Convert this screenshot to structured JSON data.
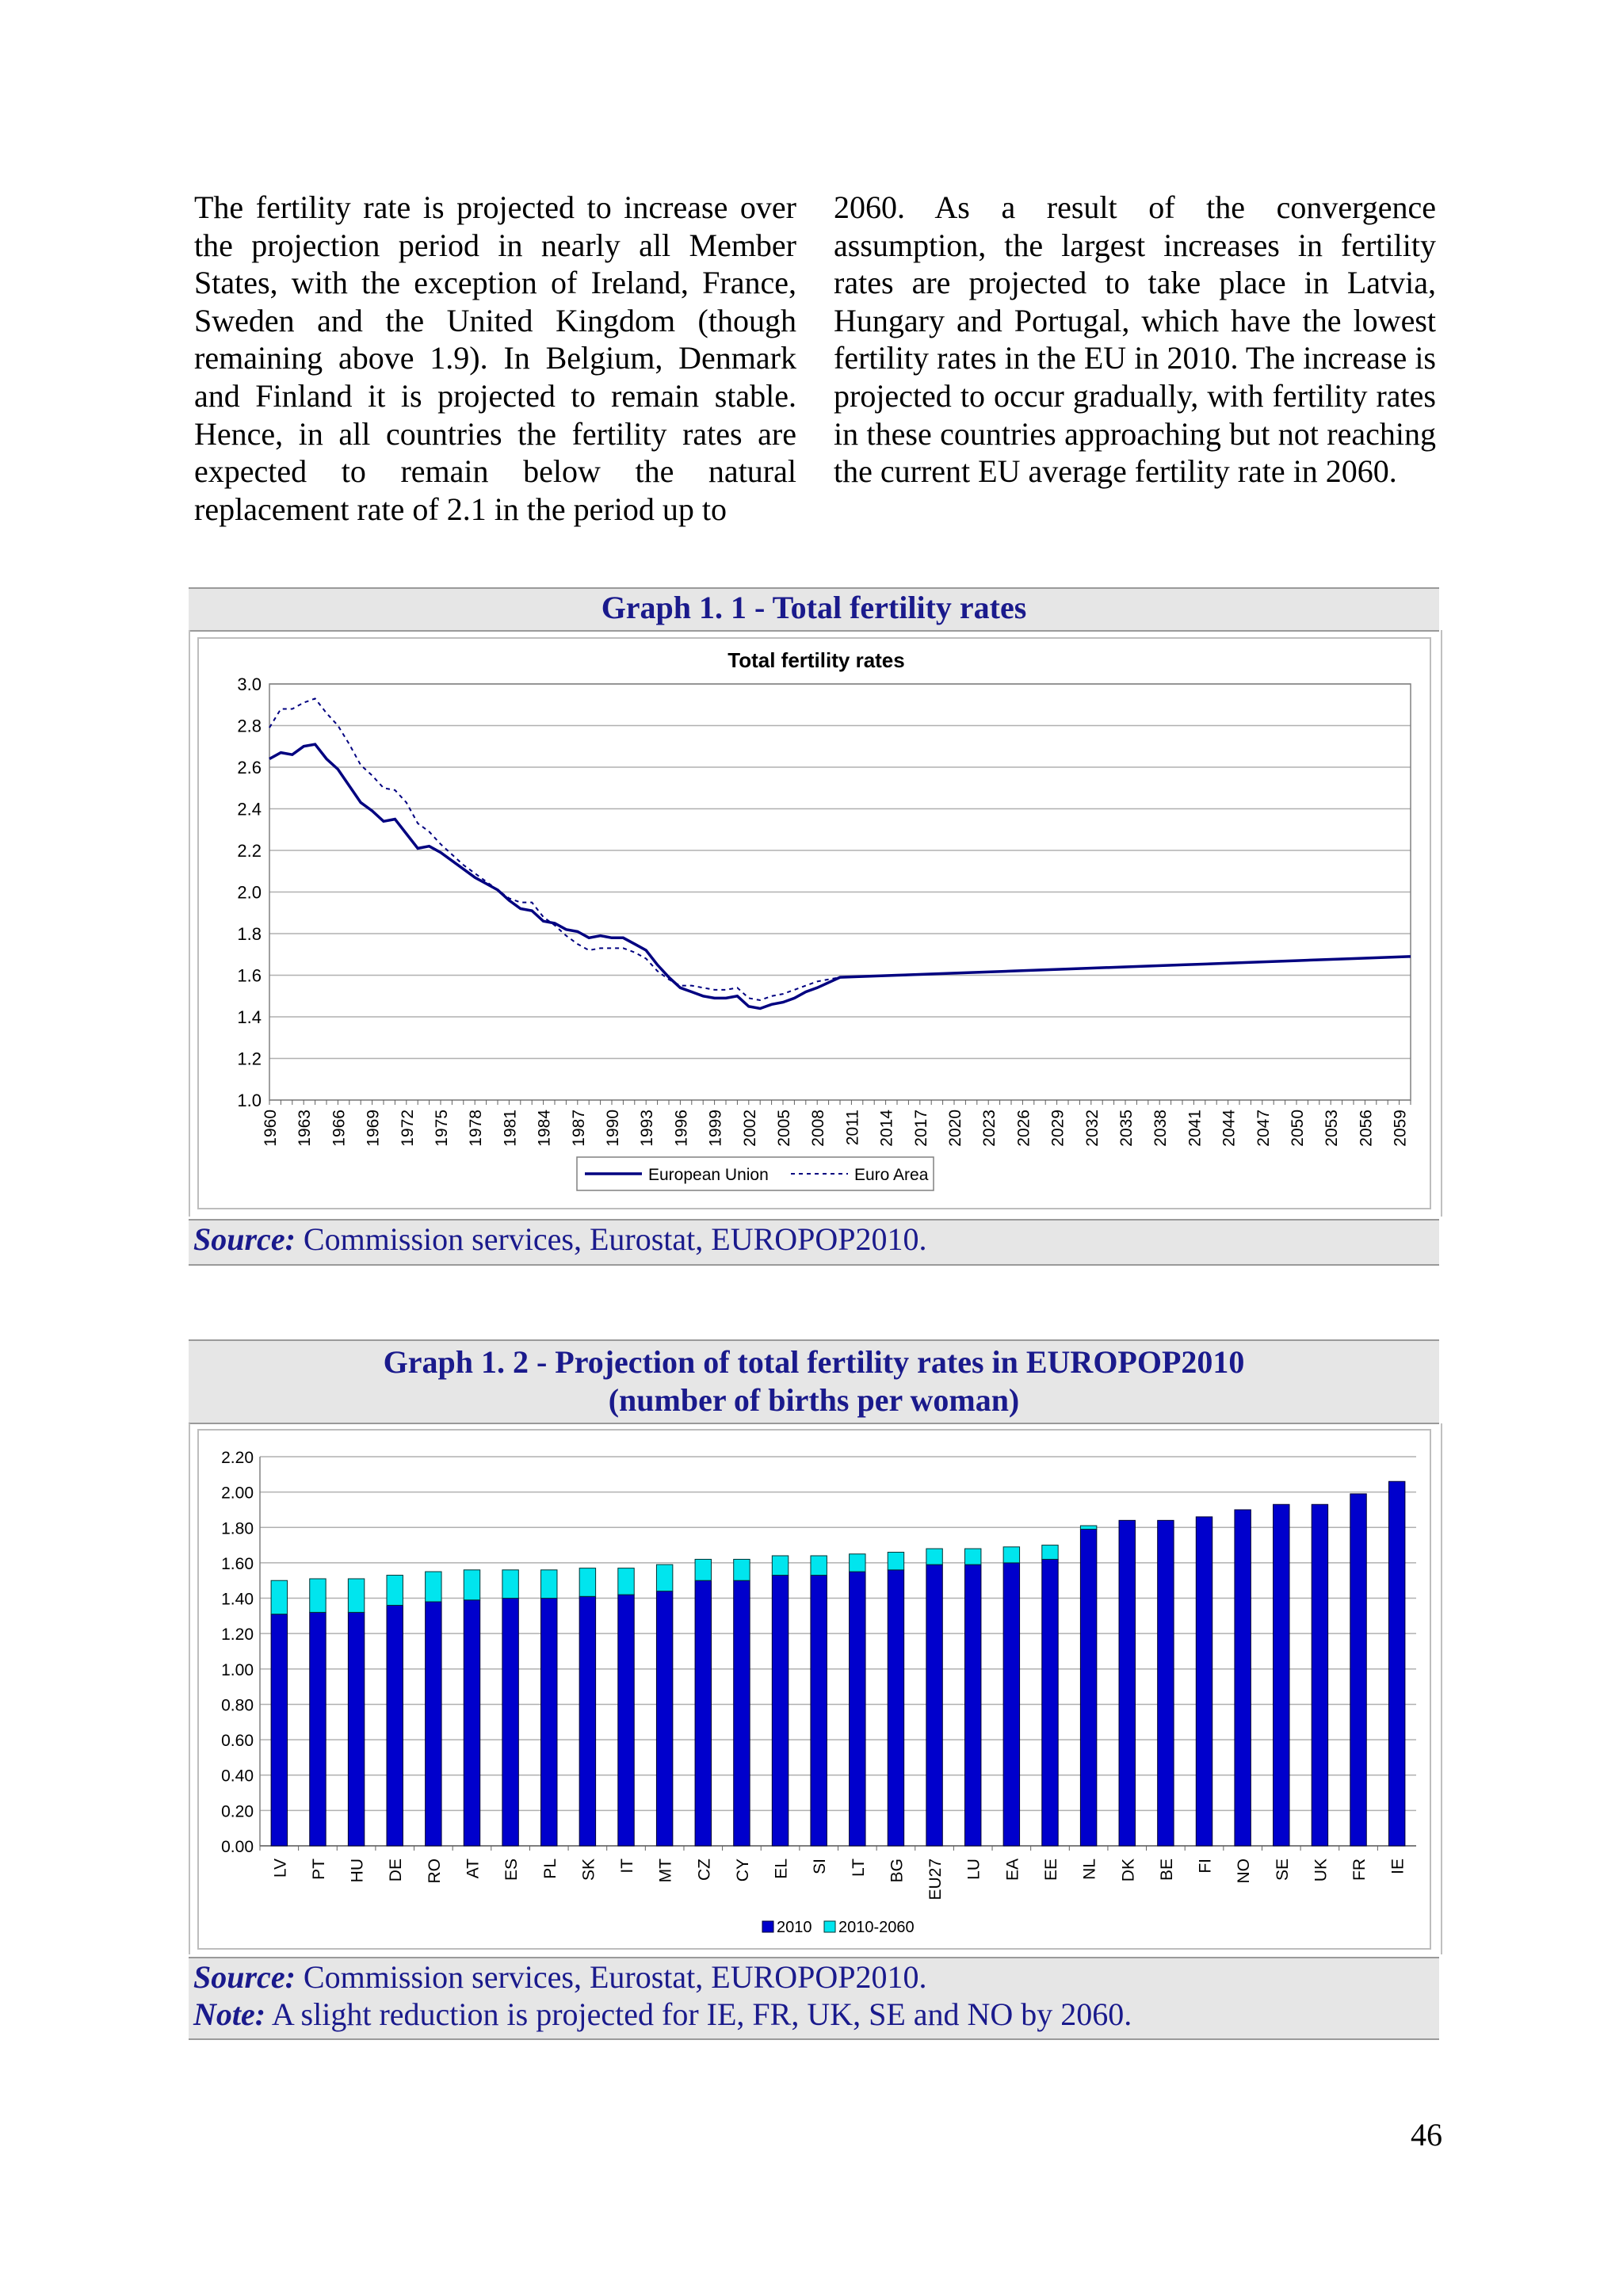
{
  "text": {
    "left": "The fertility rate is projected to increase over the projection period in nearly all Member States, with the exception of Ireland, France, Sweden and the United Kingdom (though remaining above 1.9). In Belgium, Denmark and Finland it is projected to remain stable. Hence, in all countries the fertility rates are expected to remain below the natural replacement rate of 2.1 in the period up to",
    "right": "2060. As a result of the convergence assumption, the largest increases in fertility rates are projected to take place in Latvia, Hungary and Portugal, which have the lowest fertility rates in the EU in 2010. The increase is projected to occur gradually, with fertility rates in these countries approaching but not reaching the current EU average fertility rate in 2060."
  },
  "graph1": {
    "heading": "Graph 1. 1 - Total fertility rates",
    "source_label": "Source:",
    "source_text": " Commission services, Eurostat, EUROPOP2010."
  },
  "graph2": {
    "heading_line1": "Graph 1. 2 - Projection of total fertility rates in EUROPOP2010",
    "heading_line2": "(number of births per woman)",
    "source_label": "Source:",
    "source_text": " Commission services, Eurostat, EUROPOP2010.",
    "note_label": "Note:",
    "note_text": " A slight reduction is projected for IE, FR, UK, SE and NO by 2060."
  },
  "page_number": "46",
  "colors": {
    "eu_line": "#000080",
    "euro_area_line": "#000080",
    "bar_2010": "#0000cc",
    "bar_increase": "#00e5ee",
    "heading_text": "#1a1a8c"
  },
  "chart_data": [
    {
      "type": "line",
      "title": "Total fertility rates",
      "ylim": [
        1.0,
        3.0
      ],
      "yticks": [
        "1.0",
        "1.2",
        "1.4",
        "1.6",
        "1.8",
        "2.0",
        "2.2",
        "2.4",
        "2.6",
        "2.8",
        "3.0"
      ],
      "xlim": [
        1960,
        2060
      ],
      "xticks": [
        "1960",
        "1963",
        "1966",
        "1969",
        "1972",
        "1975",
        "1978",
        "1981",
        "1984",
        "1987",
        "1990",
        "1993",
        "1996",
        "1999",
        "2002",
        "2005",
        "2008",
        "2011",
        "2014",
        "2017",
        "2020",
        "2023",
        "2026",
        "2029",
        "2032",
        "2035",
        "2038",
        "2041",
        "2044",
        "2047",
        "2050",
        "2053",
        "2056",
        "2059"
      ],
      "legend": "bottom",
      "grid": true,
      "series": [
        {
          "name": "European Union",
          "style": "solid",
          "x": [
            1960,
            1961,
            1962,
            1963,
            1964,
            1965,
            1966,
            1967,
            1968,
            1969,
            1970,
            1971,
            1972,
            1973,
            1974,
            1975,
            1976,
            1977,
            1978,
            1979,
            1980,
            1981,
            1982,
            1983,
            1984,
            1985,
            1986,
            1987,
            1988,
            1989,
            1990,
            1991,
            1992,
            1993,
            1994,
            1995,
            1996,
            1997,
            1998,
            1999,
            2000,
            2001,
            2002,
            2003,
            2004,
            2005,
            2006,
            2007,
            2008,
            2010,
            2015,
            2020,
            2025,
            2030,
            2035,
            2040,
            2045,
            2050,
            2055,
            2060
          ],
          "y": [
            2.64,
            2.67,
            2.66,
            2.7,
            2.71,
            2.64,
            2.59,
            2.51,
            2.43,
            2.39,
            2.34,
            2.35,
            2.28,
            2.21,
            2.22,
            2.19,
            2.15,
            2.11,
            2.07,
            2.04,
            2.01,
            1.96,
            1.92,
            1.91,
            1.86,
            1.85,
            1.82,
            1.81,
            1.78,
            1.79,
            1.78,
            1.78,
            1.75,
            1.72,
            1.65,
            1.59,
            1.54,
            1.52,
            1.5,
            1.49,
            1.49,
            1.5,
            1.45,
            1.44,
            1.46,
            1.47,
            1.49,
            1.52,
            1.54,
            1.59,
            1.6,
            1.61,
            1.62,
            1.63,
            1.64,
            1.65,
            1.66,
            1.67,
            1.68,
            1.69
          ]
        },
        {
          "name": "Euro Area",
          "style": "dotted",
          "x": [
            1960,
            1961,
            1962,
            1963,
            1964,
            1965,
            1966,
            1967,
            1968,
            1969,
            1970,
            1971,
            1972,
            1973,
            1974,
            1975,
            1976,
            1977,
            1978,
            1979,
            1980,
            1981,
            1982,
            1983,
            1984,
            1985,
            1986,
            1987,
            1988,
            1989,
            1990,
            1991,
            1992,
            1993,
            1994,
            1995,
            1996,
            1997,
            1998,
            1999,
            2000,
            2001,
            2002,
            2003,
            2004,
            2005,
            2006,
            2007,
            2008,
            2010,
            2015,
            2020,
            2025,
            2030,
            2035,
            2040,
            2045,
            2050,
            2055,
            2060
          ],
          "y": [
            2.79,
            2.88,
            2.88,
            2.91,
            2.93,
            2.86,
            2.8,
            2.71,
            2.61,
            2.56,
            2.5,
            2.49,
            2.43,
            2.33,
            2.29,
            2.23,
            2.18,
            2.13,
            2.09,
            2.05,
            2.01,
            1.97,
            1.95,
            1.95,
            1.88,
            1.84,
            1.79,
            1.75,
            1.72,
            1.73,
            1.73,
            1.73,
            1.71,
            1.68,
            1.62,
            1.58,
            1.55,
            1.55,
            1.54,
            1.53,
            1.53,
            1.54,
            1.49,
            1.48,
            1.5,
            1.51,
            1.53,
            1.55,
            1.57,
            1.59,
            1.6,
            1.61,
            1.62,
            1.63,
            1.64,
            1.65,
            1.66,
            1.67,
            1.68,
            1.69
          ]
        }
      ]
    },
    {
      "type": "bar",
      "stacked": true,
      "ylim": [
        0,
        2.2
      ],
      "yticks": [
        "0.00",
        "0.20",
        "0.40",
        "0.60",
        "0.80",
        "1.00",
        "1.20",
        "1.40",
        "1.60",
        "1.80",
        "2.00",
        "2.20"
      ],
      "legend": "bottom",
      "grid": true,
      "categories": [
        "LV",
        "PT",
        "HU",
        "DE",
        "RO",
        "AT",
        "ES",
        "PL",
        "SK",
        "IT",
        "MT",
        "CZ",
        "CY",
        "EL",
        "SI",
        "LT",
        "BG",
        "EU27",
        "LU",
        "EA",
        "EE",
        "NL",
        "DK",
        "BE",
        "FI",
        "NO",
        "SE",
        "UK",
        "FR",
        "IE"
      ],
      "series": [
        {
          "name": "2010",
          "values": [
            1.31,
            1.32,
            1.32,
            1.36,
            1.38,
            1.39,
            1.4,
            1.4,
            1.41,
            1.42,
            1.44,
            1.5,
            1.5,
            1.53,
            1.53,
            1.55,
            1.56,
            1.59,
            1.59,
            1.6,
            1.62,
            1.79,
            1.84,
            1.84,
            1.86,
            1.9,
            1.93,
            1.93,
            1.99,
            2.06
          ]
        },
        {
          "name": "2010-2060",
          "values": [
            0.19,
            0.19,
            0.19,
            0.17,
            0.17,
            0.17,
            0.16,
            0.16,
            0.16,
            0.15,
            0.15,
            0.12,
            0.12,
            0.11,
            0.11,
            0.1,
            0.1,
            0.09,
            0.09,
            0.09,
            0.08,
            0.02,
            0,
            0,
            0,
            0,
            0,
            0,
            0,
            0
          ]
        }
      ]
    }
  ]
}
